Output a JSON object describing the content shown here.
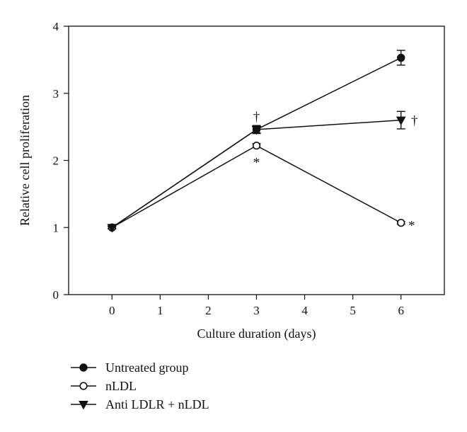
{
  "chart_data": {
    "type": "line",
    "title": "",
    "xlabel": "Culture duration (days)",
    "ylabel": "Relative cell proliferation",
    "xlim": [
      -0.9,
      6.9
    ],
    "ylim": [
      0,
      4
    ],
    "xticks": [
      0,
      1,
      2,
      3,
      4,
      5,
      6
    ],
    "yticks": [
      0,
      1,
      2,
      3,
      4
    ],
    "grid": false,
    "legend_position": "bottom-left",
    "colors": {
      "line": "#111111",
      "marker": "#111111",
      "open_marker_fill": "#ffffff"
    },
    "x": [
      0,
      3,
      6
    ],
    "series": [
      {
        "name": "Untreated group",
        "marker": "filled-circle",
        "values": [
          1.0,
          2.46,
          3.53
        ],
        "errors": [
          0.02,
          0.05,
          0.11
        ]
      },
      {
        "name": "nLDL",
        "marker": "open-circle",
        "values": [
          1.0,
          2.22,
          1.07
        ],
        "errors": [
          0.02,
          0.03,
          0.02
        ]
      },
      {
        "name": "Anti LDLR + nLDL",
        "marker": "filled-triangle-down",
        "values": [
          1.0,
          2.46,
          2.6
        ],
        "errors": [
          0.02,
          0.06,
          0.13
        ]
      }
    ],
    "annotations": [
      {
        "text": "†",
        "x": 3,
        "y": 2.66
      },
      {
        "text": "*",
        "x": 3,
        "y": 1.98
      },
      {
        "text": "†",
        "x": 6.28,
        "y": 2.6
      },
      {
        "text": "*",
        "x": 6.22,
        "y": 1.04
      }
    ]
  }
}
